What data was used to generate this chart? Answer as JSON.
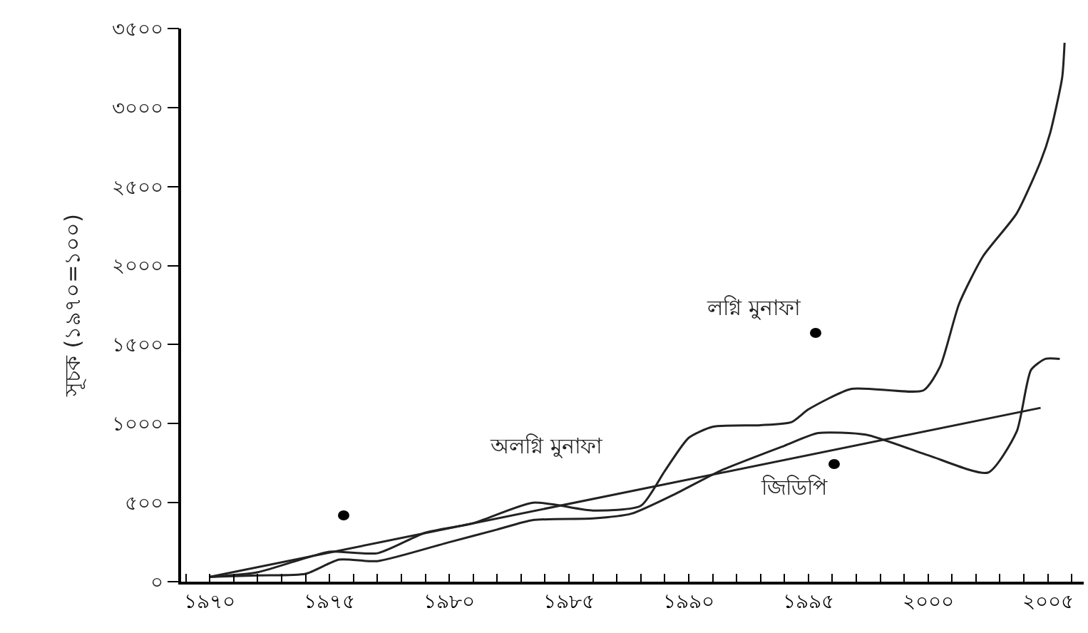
{
  "chart_data": {
    "type": "line",
    "ylabel": "সূচক (১৯৭০=১০০)",
    "xlim": [
      1968.8,
      2006.5
    ],
    "ylim": [
      0,
      3500
    ],
    "xticks": [
      {
        "value": 1969,
        "label": null
      },
      {
        "value": 1970,
        "label": "১৯৭০"
      },
      {
        "value": 1971,
        "label": null
      },
      {
        "value": 1972,
        "label": null
      },
      {
        "value": 1973,
        "label": null
      },
      {
        "value": 1974,
        "label": null
      },
      {
        "value": 1975,
        "label": "১৯৭৫"
      },
      {
        "value": 1976,
        "label": null
      },
      {
        "value": 1977,
        "label": null
      },
      {
        "value": 1978,
        "label": null
      },
      {
        "value": 1979,
        "label": null
      },
      {
        "value": 1980,
        "label": "১৯৮০"
      },
      {
        "value": 1981,
        "label": null
      },
      {
        "value": 1982,
        "label": null
      },
      {
        "value": 1983,
        "label": null
      },
      {
        "value": 1984,
        "label": null
      },
      {
        "value": 1985,
        "label": "১৯৮৫"
      },
      {
        "value": 1986,
        "label": null
      },
      {
        "value": 1987,
        "label": null
      },
      {
        "value": 1988,
        "label": null
      },
      {
        "value": 1989,
        "label": null
      },
      {
        "value": 1990,
        "label": "১৯৯০"
      },
      {
        "value": 1991,
        "label": null
      },
      {
        "value": 1992,
        "label": null
      },
      {
        "value": 1993,
        "label": null
      },
      {
        "value": 1994,
        "label": null
      },
      {
        "value": 1995,
        "label": "১৯৯৫"
      },
      {
        "value": 1996,
        "label": null
      },
      {
        "value": 1997,
        "label": null
      },
      {
        "value": 1998,
        "label": null
      },
      {
        "value": 1999,
        "label": null
      },
      {
        "value": 2000,
        "label": "২০০০"
      },
      {
        "value": 2001,
        "label": null
      },
      {
        "value": 2002,
        "label": null
      },
      {
        "value": 2003,
        "label": null
      },
      {
        "value": 2004,
        "label": null
      },
      {
        "value": 2005,
        "label": "২০০৫"
      },
      {
        "value": 2006,
        "label": null
      }
    ],
    "yticks": [
      {
        "value": 0,
        "label": "০"
      },
      {
        "value": 500,
        "label": "৫০০"
      },
      {
        "value": 1000,
        "label": "১০০০"
      },
      {
        "value": 1500,
        "label": "১৫০০"
      },
      {
        "value": 2000,
        "label": "২০০০"
      },
      {
        "value": 2500,
        "label": "২৫০০"
      },
      {
        "value": 3000,
        "label": "৩০০০"
      },
      {
        "value": 3500,
        "label": "৩৫০০"
      }
    ],
    "annotations": [
      "লগ্নি মুনাফা",
      "অলগ্নি মুনাফা",
      "জিডিপি"
    ],
    "grid": false,
    "legend": false,
    "marker": "none",
    "line_style": "solid",
    "series": [
      {
        "color": "#222222",
        "x": [
          1970,
          1972,
          1974,
          1975,
          1977,
          1979,
          1981,
          1983.5,
          1986,
          1988,
          1989,
          1990,
          1991,
          1993,
          1994.3,
          1995,
          1996.8,
          1999.8,
          2000.5,
          2001.3,
          2002.3,
          2003.7,
          2004.7,
          2005.1,
          2005.6,
          2005.7
        ],
        "values": [
          30,
          60,
          150,
          190,
          180,
          310,
          370,
          500,
          450,
          480,
          700,
          910,
          980,
          990,
          1010,
          1090,
          1220,
          1210,
          1360,
          1760,
          2060,
          2330,
          2660,
          2840,
          3190,
          3410
        ]
      },
      {
        "color": "#222222",
        "x": [
          1970,
          1972,
          1974,
          1975.4,
          1977,
          1980,
          1982,
          1983.5,
          1986,
          1987.6,
          1989.5,
          1991.3,
          1994,
          1995.4,
          1997.4,
          2000,
          2002.5,
          2003.7,
          2004.3,
          2004.9,
          2005.5
        ],
        "values": [
          30,
          40,
          50,
          140,
          130,
          250,
          330,
          390,
          400,
          430,
          560,
          700,
          860,
          940,
          930,
          800,
          690,
          950,
          1340,
          1410,
          1410
        ]
      },
      {
        "color": "#222222",
        "x": [
          1970,
          2004.7
        ],
        "values": [
          30,
          1100
        ]
      }
    ]
  }
}
